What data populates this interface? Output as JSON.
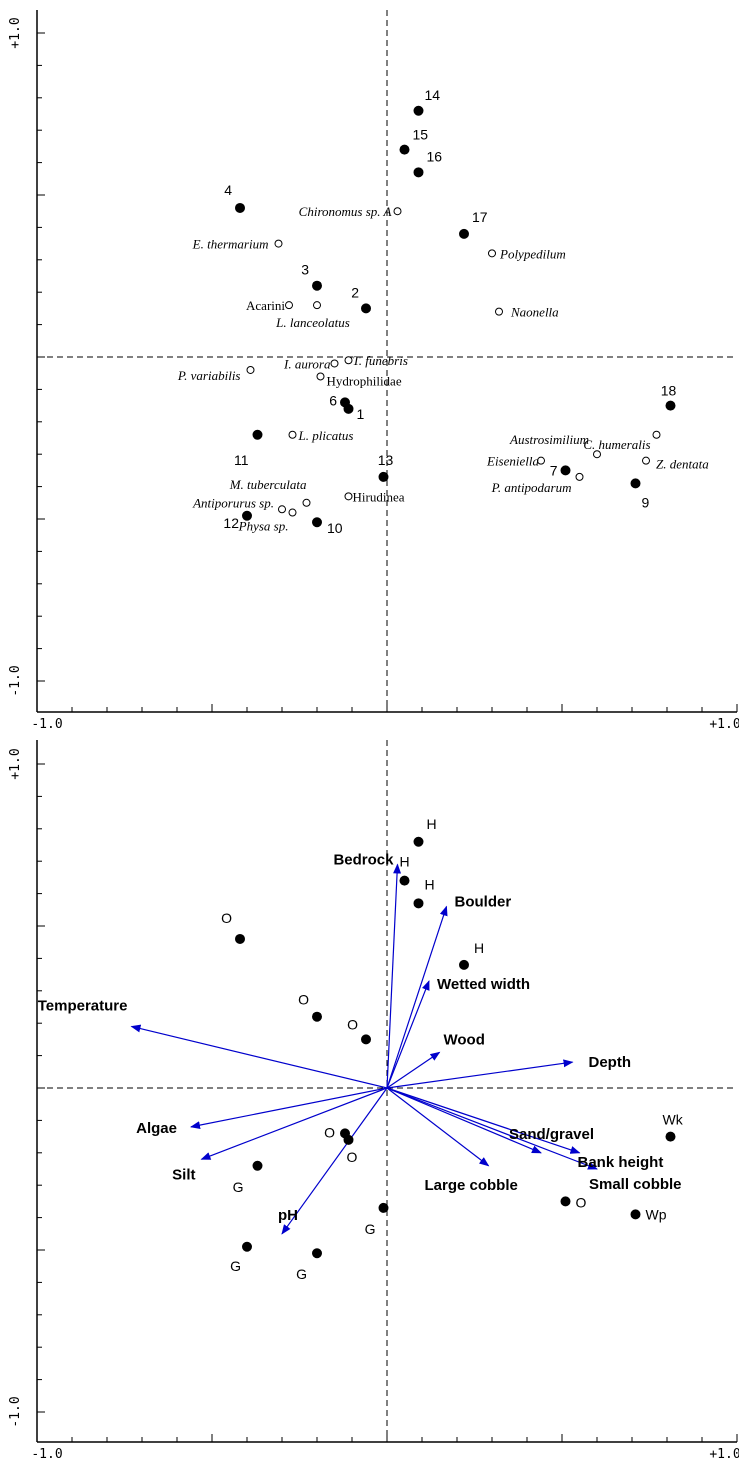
{
  "colors": {
    "axis": "#000000",
    "arrow": "#0000cc",
    "site": "#000000",
    "species_fill": "#ffffff"
  },
  "chart_data": [
    {
      "type": "scatter",
      "panel": "top",
      "xlim": [
        -1.0,
        1.0
      ],
      "ylim": [
        -1.0,
        1.0
      ],
      "axis_labels": {
        "x_min": "-1.0",
        "x_max": "+1.0",
        "y_min": "-1.0",
        "y_max": "+1.0"
      },
      "sites": [
        {
          "label": "14",
          "x": 0.09,
          "y": 0.76
        },
        {
          "label": "15",
          "x": 0.05,
          "y": 0.64
        },
        {
          "label": "16",
          "x": 0.09,
          "y": 0.57
        },
        {
          "label": "4",
          "x": -0.42,
          "y": 0.46
        },
        {
          "label": "17",
          "x": 0.22,
          "y": 0.38
        },
        {
          "label": "3",
          "x": -0.2,
          "y": 0.22
        },
        {
          "label": "2",
          "x": -0.06,
          "y": 0.15
        },
        {
          "label": "6",
          "x": -0.12,
          "y": -0.14
        },
        {
          "label": "1",
          "x": -0.11,
          "y": -0.16
        },
        {
          "label": "18",
          "x": 0.81,
          "y": -0.15
        },
        {
          "label": "11",
          "x": -0.37,
          "y": -0.24
        },
        {
          "label": "13",
          "x": -0.01,
          "y": -0.37
        },
        {
          "label": "7",
          "x": 0.51,
          "y": -0.35
        },
        {
          "label": "9",
          "x": 0.71,
          "y": -0.39
        },
        {
          "label": "12",
          "x": -0.4,
          "y": -0.49
        },
        {
          "label": "10",
          "x": -0.2,
          "y": -0.51
        }
      ],
      "species": [
        {
          "label": "Chironomus sp. A",
          "x": 0.03,
          "y": 0.45,
          "italic": true
        },
        {
          "label": "E. thermarium",
          "x": -0.31,
          "y": 0.35,
          "italic": true
        },
        {
          "label": "Polypedilum",
          "x": 0.3,
          "y": 0.32,
          "italic": true
        },
        {
          "label": "Acarini",
          "x": -0.28,
          "y": 0.16,
          "italic": false
        },
        {
          "label": "L. lanceolatus",
          "x": -0.2,
          "y": 0.16,
          "italic": true
        },
        {
          "label": "Naonella",
          "x": 0.32,
          "y": 0.14,
          "italic": true
        },
        {
          "label": "I. aurora",
          "x": -0.15,
          "y": -0.02,
          "italic": true
        },
        {
          "label": "T. funebris",
          "x": -0.11,
          "y": -0.01,
          "italic": true
        },
        {
          "label": "P. variabilis",
          "x": -0.39,
          "y": -0.04,
          "italic": true
        },
        {
          "label": "Hydrophilidae",
          "x": -0.19,
          "y": -0.06,
          "italic": false
        },
        {
          "label": "L. plicatus",
          "x": -0.27,
          "y": -0.24,
          "italic": true
        },
        {
          "label": "C. humeralis",
          "x": 0.77,
          "y": -0.24,
          "italic": true
        },
        {
          "label": "Austrosimilium",
          "x": 0.6,
          "y": -0.3,
          "italic": true
        },
        {
          "label": "Eiseniella",
          "x": 0.44,
          "y": -0.32,
          "italic": true
        },
        {
          "label": "Z. dentata",
          "x": 0.74,
          "y": -0.32,
          "italic": true
        },
        {
          "label": "P. antipodarum",
          "x": 0.55,
          "y": -0.37,
          "italic": true
        },
        {
          "label": "M. tuberculata",
          "x": -0.23,
          "y": -0.45,
          "italic": true
        },
        {
          "label": "Hirudinea",
          "x": -0.11,
          "y": -0.43,
          "italic": false
        },
        {
          "label": "Antiporurus sp.",
          "x": -0.3,
          "y": -0.47,
          "italic": true
        },
        {
          "label": "Physa sp.",
          "x": -0.27,
          "y": -0.48,
          "italic": true
        }
      ]
    },
    {
      "type": "biplot",
      "panel": "bottom",
      "xlim": [
        -1.0,
        1.0
      ],
      "ylim": [
        -1.0,
        1.0
      ],
      "axis_labels": {
        "x_min": "-1.0",
        "x_max": "+1.0",
        "y_min": "-1.0",
        "y_max": "+1.0"
      },
      "sites": [
        {
          "group": "H",
          "x": 0.09,
          "y": 0.76
        },
        {
          "group": "H",
          "x": 0.05,
          "y": 0.64
        },
        {
          "group": "H",
          "x": 0.09,
          "y": 0.57
        },
        {
          "group": "O",
          "x": -0.42,
          "y": 0.46
        },
        {
          "group": "H",
          "x": 0.22,
          "y": 0.38
        },
        {
          "group": "O",
          "x": -0.2,
          "y": 0.22
        },
        {
          "group": "O",
          "x": -0.06,
          "y": 0.15
        },
        {
          "group": "O",
          "x": -0.12,
          "y": -0.14
        },
        {
          "group": "O",
          "x": -0.11,
          "y": -0.16
        },
        {
          "group": "Wk",
          "x": 0.81,
          "y": -0.15
        },
        {
          "group": "G",
          "x": -0.37,
          "y": -0.24
        },
        {
          "group": "G",
          "x": -0.01,
          "y": -0.37
        },
        {
          "group": "O",
          "x": 0.51,
          "y": -0.35
        },
        {
          "group": "Wp",
          "x": 0.71,
          "y": -0.39
        },
        {
          "group": "G",
          "x": -0.4,
          "y": -0.49
        },
        {
          "group": "G",
          "x": -0.2,
          "y": -0.51
        }
      ],
      "vectors": [
        {
          "name": "Bedrock",
          "x": 0.03,
          "y": 0.69
        },
        {
          "name": "Boulder",
          "x": 0.17,
          "y": 0.56
        },
        {
          "name": "Wetted width",
          "x": 0.12,
          "y": 0.33
        },
        {
          "name": "Wood",
          "x": 0.15,
          "y": 0.11
        },
        {
          "name": "Depth",
          "x": 0.53,
          "y": 0.08
        },
        {
          "name": "Temperature",
          "x": -0.73,
          "y": 0.19
        },
        {
          "name": "Algae",
          "x": -0.56,
          "y": -0.12
        },
        {
          "name": "Silt",
          "x": -0.53,
          "y": -0.22
        },
        {
          "name": "pH",
          "x": -0.3,
          "y": -0.45
        },
        {
          "name": "Large cobble",
          "x": 0.29,
          "y": -0.24
        },
        {
          "name": "Sand/gravel",
          "x": 0.44,
          "y": -0.2
        },
        {
          "name": "Bank height",
          "x": 0.55,
          "y": -0.2
        },
        {
          "name": "Small cobble",
          "x": 0.6,
          "y": -0.25
        }
      ]
    }
  ]
}
